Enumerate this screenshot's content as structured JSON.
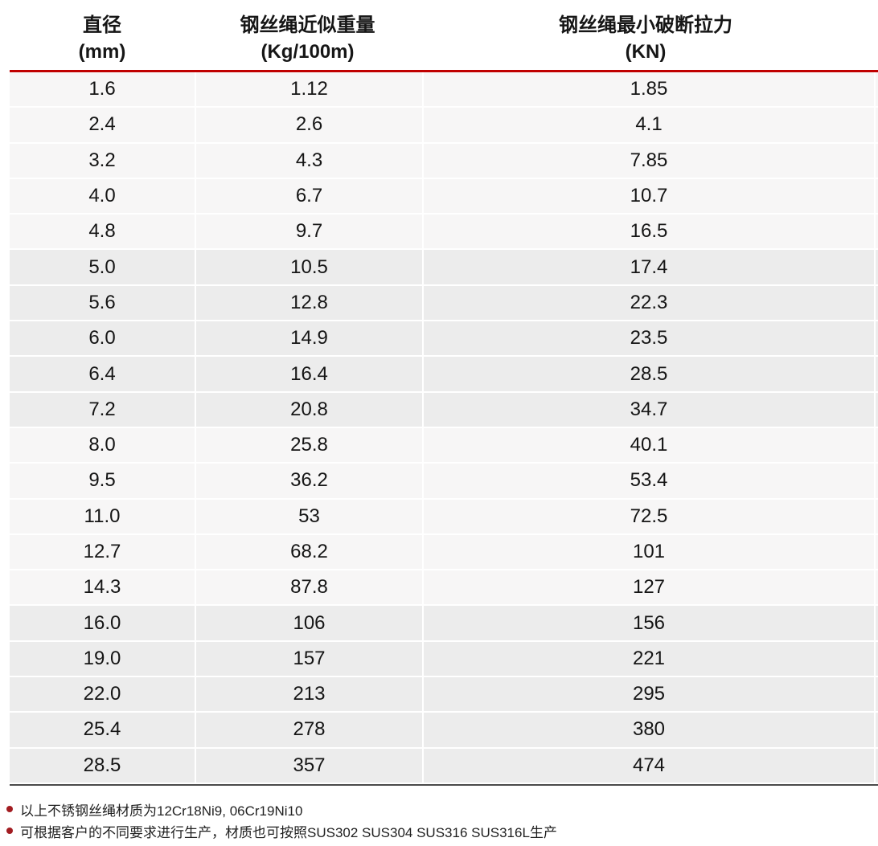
{
  "chart_data": {
    "type": "table",
    "title": "",
    "columns": [
      {
        "title": "直径",
        "unit": "(mm)"
      },
      {
        "title": "钢丝绳近似重量",
        "unit": "(Kg/100m)"
      },
      {
        "title": "钢丝绳最小破断拉力",
        "unit": "(KN)"
      }
    ],
    "rows": [
      [
        "1.6",
        "1.12",
        "1.85"
      ],
      [
        "2.4",
        "2.6",
        "4.1"
      ],
      [
        "3.2",
        "4.3",
        "7.85"
      ],
      [
        "4.0",
        "6.7",
        "10.7"
      ],
      [
        "4.8",
        "9.7",
        "16.5"
      ],
      [
        "5.0",
        "10.5",
        "17.4"
      ],
      [
        "5.6",
        "12.8",
        "22.3"
      ],
      [
        "6.0",
        "14.9",
        "23.5"
      ],
      [
        "6.4",
        "16.4",
        "28.5"
      ],
      [
        "7.2",
        "20.8",
        "34.7"
      ],
      [
        "8.0",
        "25.8",
        "40.1"
      ],
      [
        "9.5",
        "36.2",
        "53.4"
      ],
      [
        "11.0",
        "53",
        "72.5"
      ],
      [
        "12.7",
        "68.2",
        "101"
      ],
      [
        "14.3",
        "87.8",
        "127"
      ],
      [
        "16.0",
        "106",
        "156"
      ],
      [
        "19.0",
        "157",
        "221"
      ],
      [
        "22.0",
        "213",
        "295"
      ],
      [
        "25.4",
        "278",
        "380"
      ],
      [
        "28.5",
        "357",
        "474"
      ]
    ],
    "layout": {
      "row_band_group_size": 5,
      "grid": "light horizontal/vertical white separators",
      "legend": "none"
    }
  },
  "notes": [
    {
      "text": "以上不锈钢丝绳材质为12Cr18Ni9, 06Cr19Ni10"
    },
    {
      "text": "可根据客户的不同要求进行生产，材质也可按照SUS302 SUS304 SUS316 SUS316L生产"
    }
  ],
  "colors": {
    "header_rule_red": "#c00000",
    "row_band_light": "#f7f6f6",
    "row_band_dark": "#ececec",
    "bottom_rule_gray": "#4a4a4a",
    "note_bullet_red": "#a21c21",
    "text": "#151515"
  }
}
